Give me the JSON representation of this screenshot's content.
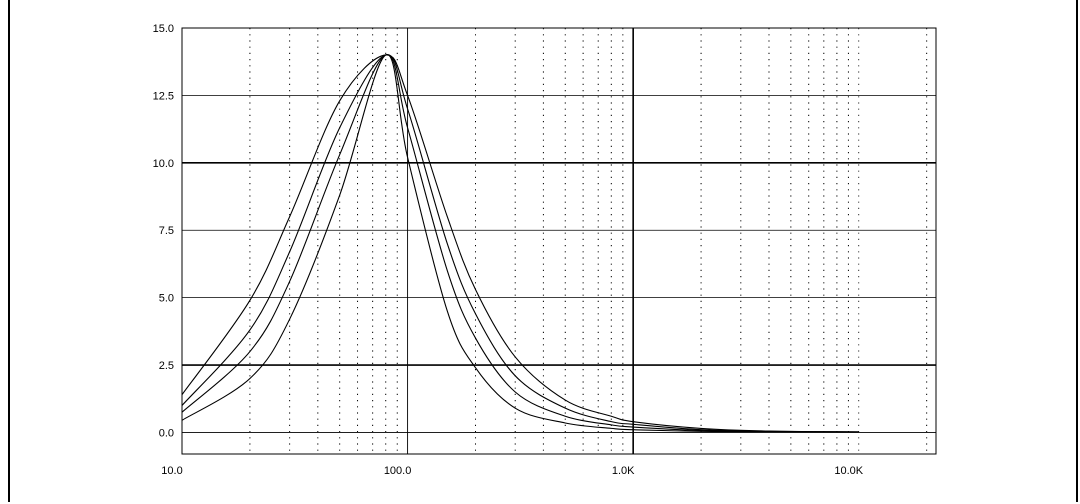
{
  "chart_data": {
    "type": "line",
    "title": "",
    "xlabel": "",
    "ylabel": "",
    "x_scale": "log",
    "xlim": [
      10,
      22000
    ],
    "ylim": [
      -0.8,
      15.0
    ],
    "grid": true,
    "x_tick_labels": [
      {
        "value": 10,
        "label": "10.0"
      },
      {
        "value": 100,
        "label": "100.0"
      },
      {
        "value": 1000,
        "label": "1.0K"
      },
      {
        "value": 10000,
        "label": "10.0K"
      }
    ],
    "y_tick_labels": [
      {
        "value": 15.0,
        "label": "15.0"
      },
      {
        "value": 12.5,
        "label": "12.5"
      },
      {
        "value": 10.0,
        "label": "10.0"
      },
      {
        "value": 7.5,
        "label": "7.5"
      },
      {
        "value": 5.0,
        "label": "5.0"
      },
      {
        "value": 2.5,
        "label": "2.5"
      },
      {
        "value": 0.0,
        "label": "0.0"
      }
    ],
    "peak": {
      "x": 80,
      "y": 14.0
    },
    "series": [
      {
        "values": [
          [
            10,
            1.4
          ],
          [
            20,
            4.9
          ],
          [
            30,
            8.0
          ],
          [
            50,
            12.3
          ],
          [
            80,
            14.0
          ],
          [
            100,
            12.5
          ],
          [
            150,
            8.0
          ],
          [
            200,
            5.3
          ],
          [
            300,
            2.8
          ],
          [
            500,
            1.2
          ],
          [
            800,
            0.6
          ],
          [
            1000,
            0.4
          ],
          [
            2000,
            0.15
          ],
          [
            4000,
            0.05
          ],
          [
            10000,
            0.02
          ]
        ]
      },
      {
        "values": [
          [
            10,
            1.0
          ],
          [
            20,
            3.8
          ],
          [
            30,
            6.7
          ],
          [
            50,
            11.3
          ],
          [
            80,
            14.0
          ],
          [
            100,
            12.0
          ],
          [
            150,
            7.0
          ],
          [
            200,
            4.4
          ],
          [
            300,
            2.1
          ],
          [
            500,
            0.9
          ],
          [
            800,
            0.4
          ],
          [
            1000,
            0.3
          ],
          [
            2000,
            0.1
          ],
          [
            4000,
            0.04
          ],
          [
            10000,
            0.02
          ]
        ]
      },
      {
        "values": [
          [
            10,
            0.75
          ],
          [
            20,
            3.0
          ],
          [
            30,
            5.6
          ],
          [
            50,
            10.3
          ],
          [
            80,
            14.0
          ],
          [
            100,
            11.3
          ],
          [
            150,
            6.0
          ],
          [
            200,
            3.5
          ],
          [
            300,
            1.5
          ],
          [
            500,
            0.6
          ],
          [
            800,
            0.28
          ],
          [
            1000,
            0.2
          ],
          [
            2000,
            0.07
          ],
          [
            4000,
            0.03
          ],
          [
            10000,
            0.02
          ]
        ]
      },
      {
        "values": [
          [
            10,
            0.45
          ],
          [
            20,
            2.0
          ],
          [
            30,
            4.2
          ],
          [
            50,
            8.8
          ],
          [
            80,
            14.0
          ],
          [
            100,
            10.2
          ],
          [
            150,
            4.5
          ],
          [
            200,
            2.4
          ],
          [
            300,
            0.9
          ],
          [
            500,
            0.35
          ],
          [
            800,
            0.15
          ],
          [
            1000,
            0.1
          ],
          [
            2000,
            0.04
          ],
          [
            4000,
            0.02
          ],
          [
            10000,
            0.01
          ]
        ]
      }
    ]
  }
}
